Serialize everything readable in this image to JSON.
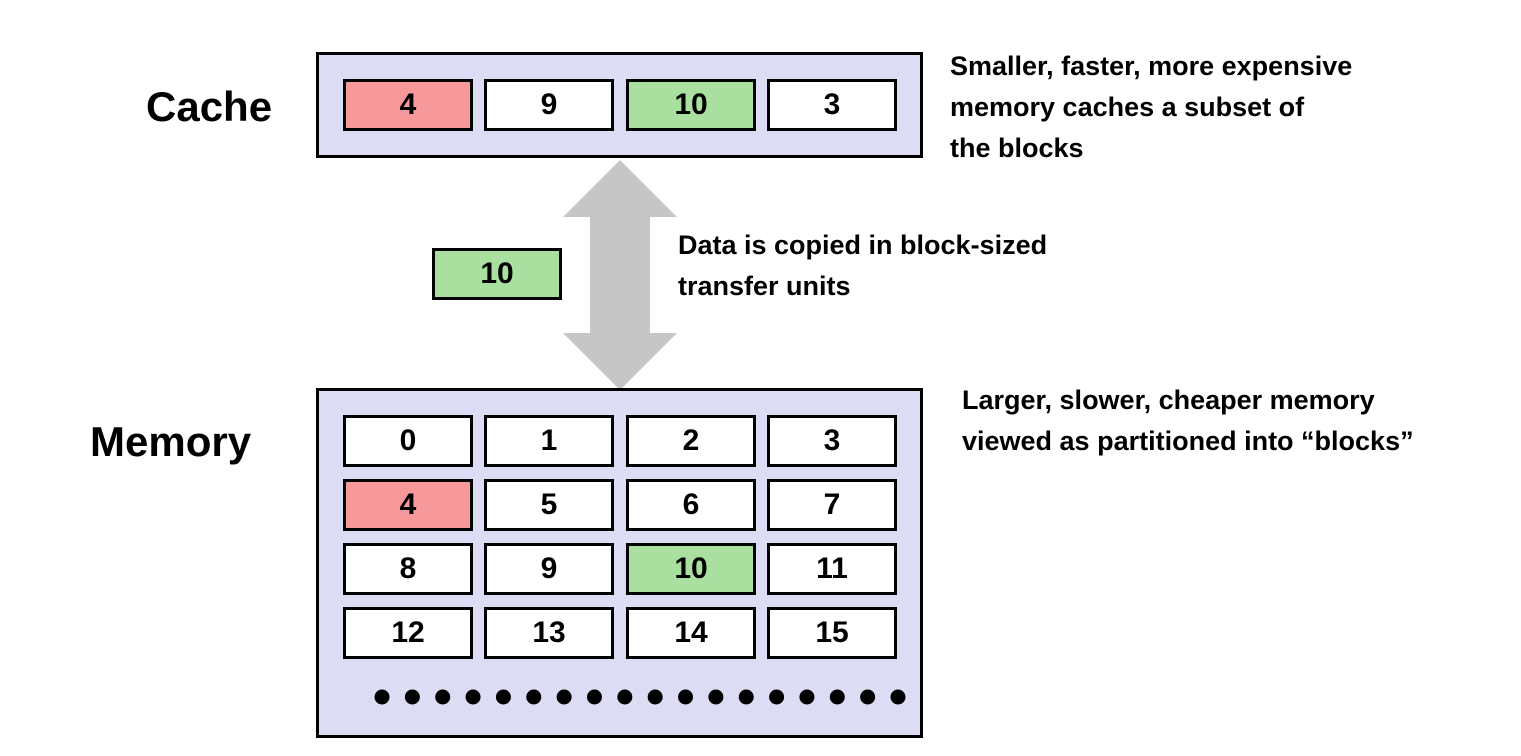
{
  "cache": {
    "label": "Cache",
    "blocks": [
      {
        "value": "4",
        "state": "evicted"
      },
      {
        "value": "9",
        "state": "normal"
      },
      {
        "value": "10",
        "state": "requested"
      },
      {
        "value": "3",
        "state": "normal"
      }
    ],
    "note_lines": [
      "Smaller, faster, more expensive",
      "memory caches a  subset of",
      "the blocks"
    ]
  },
  "transfer": {
    "block_value": "10",
    "note_lines": [
      "Data is copied in block-sized",
      "transfer units"
    ]
  },
  "memory": {
    "label": "Memory",
    "rows": [
      [
        "0",
        "1",
        "2",
        "3"
      ],
      [
        "4",
        "5",
        "6",
        "7"
      ],
      [
        "8",
        "9",
        "10",
        "11"
      ],
      [
        "12",
        "13",
        "14",
        "15"
      ]
    ],
    "highlight": {
      "evicted": "4",
      "requested": "10"
    },
    "ellipsis_dot_count": 18,
    "note_lines": [
      "Larger, slower, cheaper memory",
      "viewed as partitioned into “blocks”"
    ]
  },
  "colors": {
    "panel_fill": "#dcdcf5",
    "evicted_block": "#f7999b",
    "requested_block": "#a9e0a0",
    "normal_block": "#ffffff",
    "arrow": "#c6c6c6",
    "border": "#000000"
  }
}
